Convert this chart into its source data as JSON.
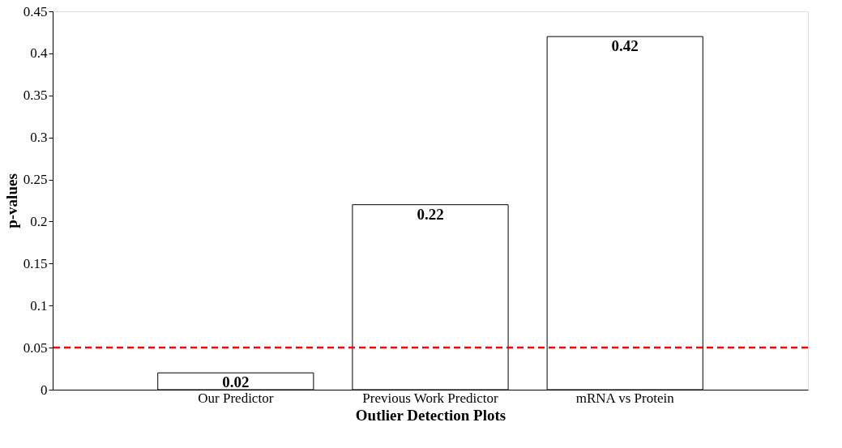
{
  "chart_data": {
    "type": "bar",
    "xlabel": "Outlier Detection Plots",
    "ylabel": "p-values",
    "categories": [
      "Our Predictor",
      "Previous Work Predictor",
      "mRNA vs Protein"
    ],
    "values": [
      0.02,
      0.22,
      0.42
    ],
    "color": "#ffffff",
    "ylim": [
      0,
      0.45
    ],
    "yticks": [
      0,
      0.05,
      0.1,
      0.15,
      0.2,
      0.25,
      0.3,
      0.35,
      0.4,
      0.45
    ],
    "grid": false,
    "data_labels": true,
    "ref_lines": [
      {
        "axis": "y",
        "value": 0.05,
        "color": "#ff0000",
        "line_style": "dashed"
      }
    ]
  }
}
